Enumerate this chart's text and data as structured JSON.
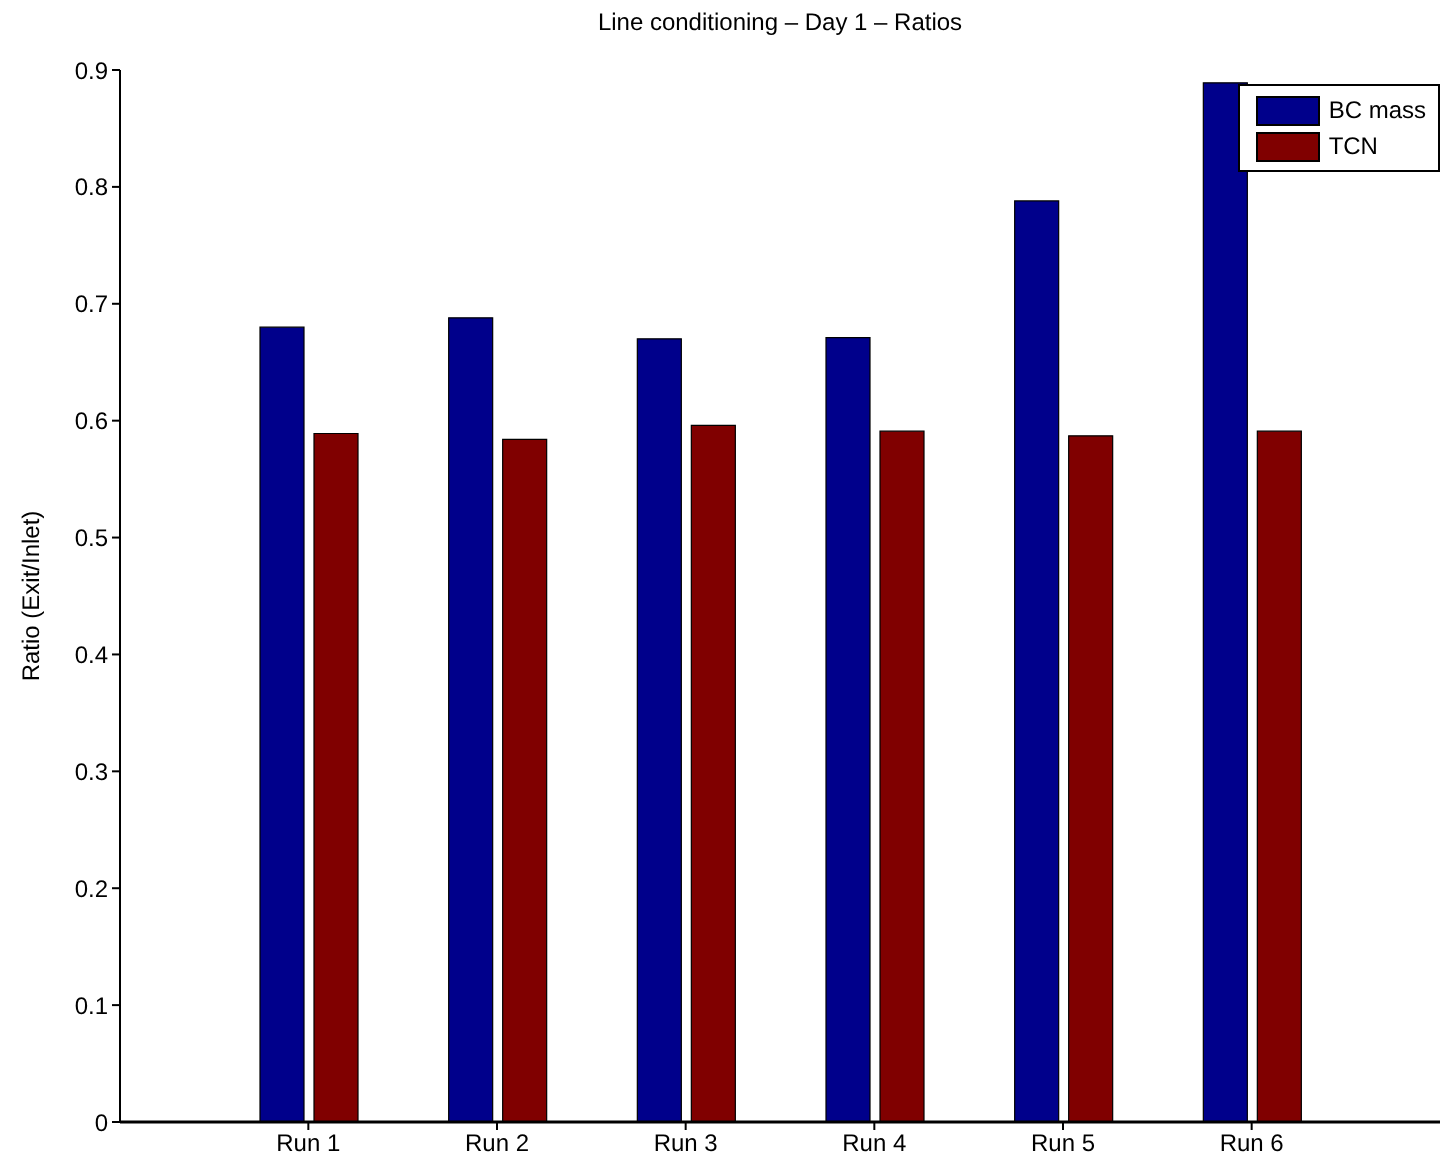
{
  "chart_data": {
    "type": "bar",
    "title": "Line conditioning – Day 1 – Ratios",
    "ylabel": "Ratio (Exit/Inlet)",
    "categories": [
      "Run 1",
      "Run 2",
      "Run 3",
      "Run 4",
      "Run 5",
      "Run 6"
    ],
    "series": [
      {
        "name": "BC mass",
        "color": "#00008b",
        "values": [
          0.68,
          0.688,
          0.67,
          0.671,
          0.788,
          0.889
        ]
      },
      {
        "name": "TCN",
        "color": "#800000",
        "values": [
          0.589,
          0.584,
          0.596,
          0.591,
          0.587,
          0.591
        ]
      }
    ],
    "ylim": [
      0,
      0.9
    ],
    "yticks": [
      0,
      0.1,
      0.2,
      0.3,
      0.4,
      0.5,
      0.6,
      0.7,
      0.8,
      0.9
    ],
    "grid": false,
    "legend": "top right"
  }
}
